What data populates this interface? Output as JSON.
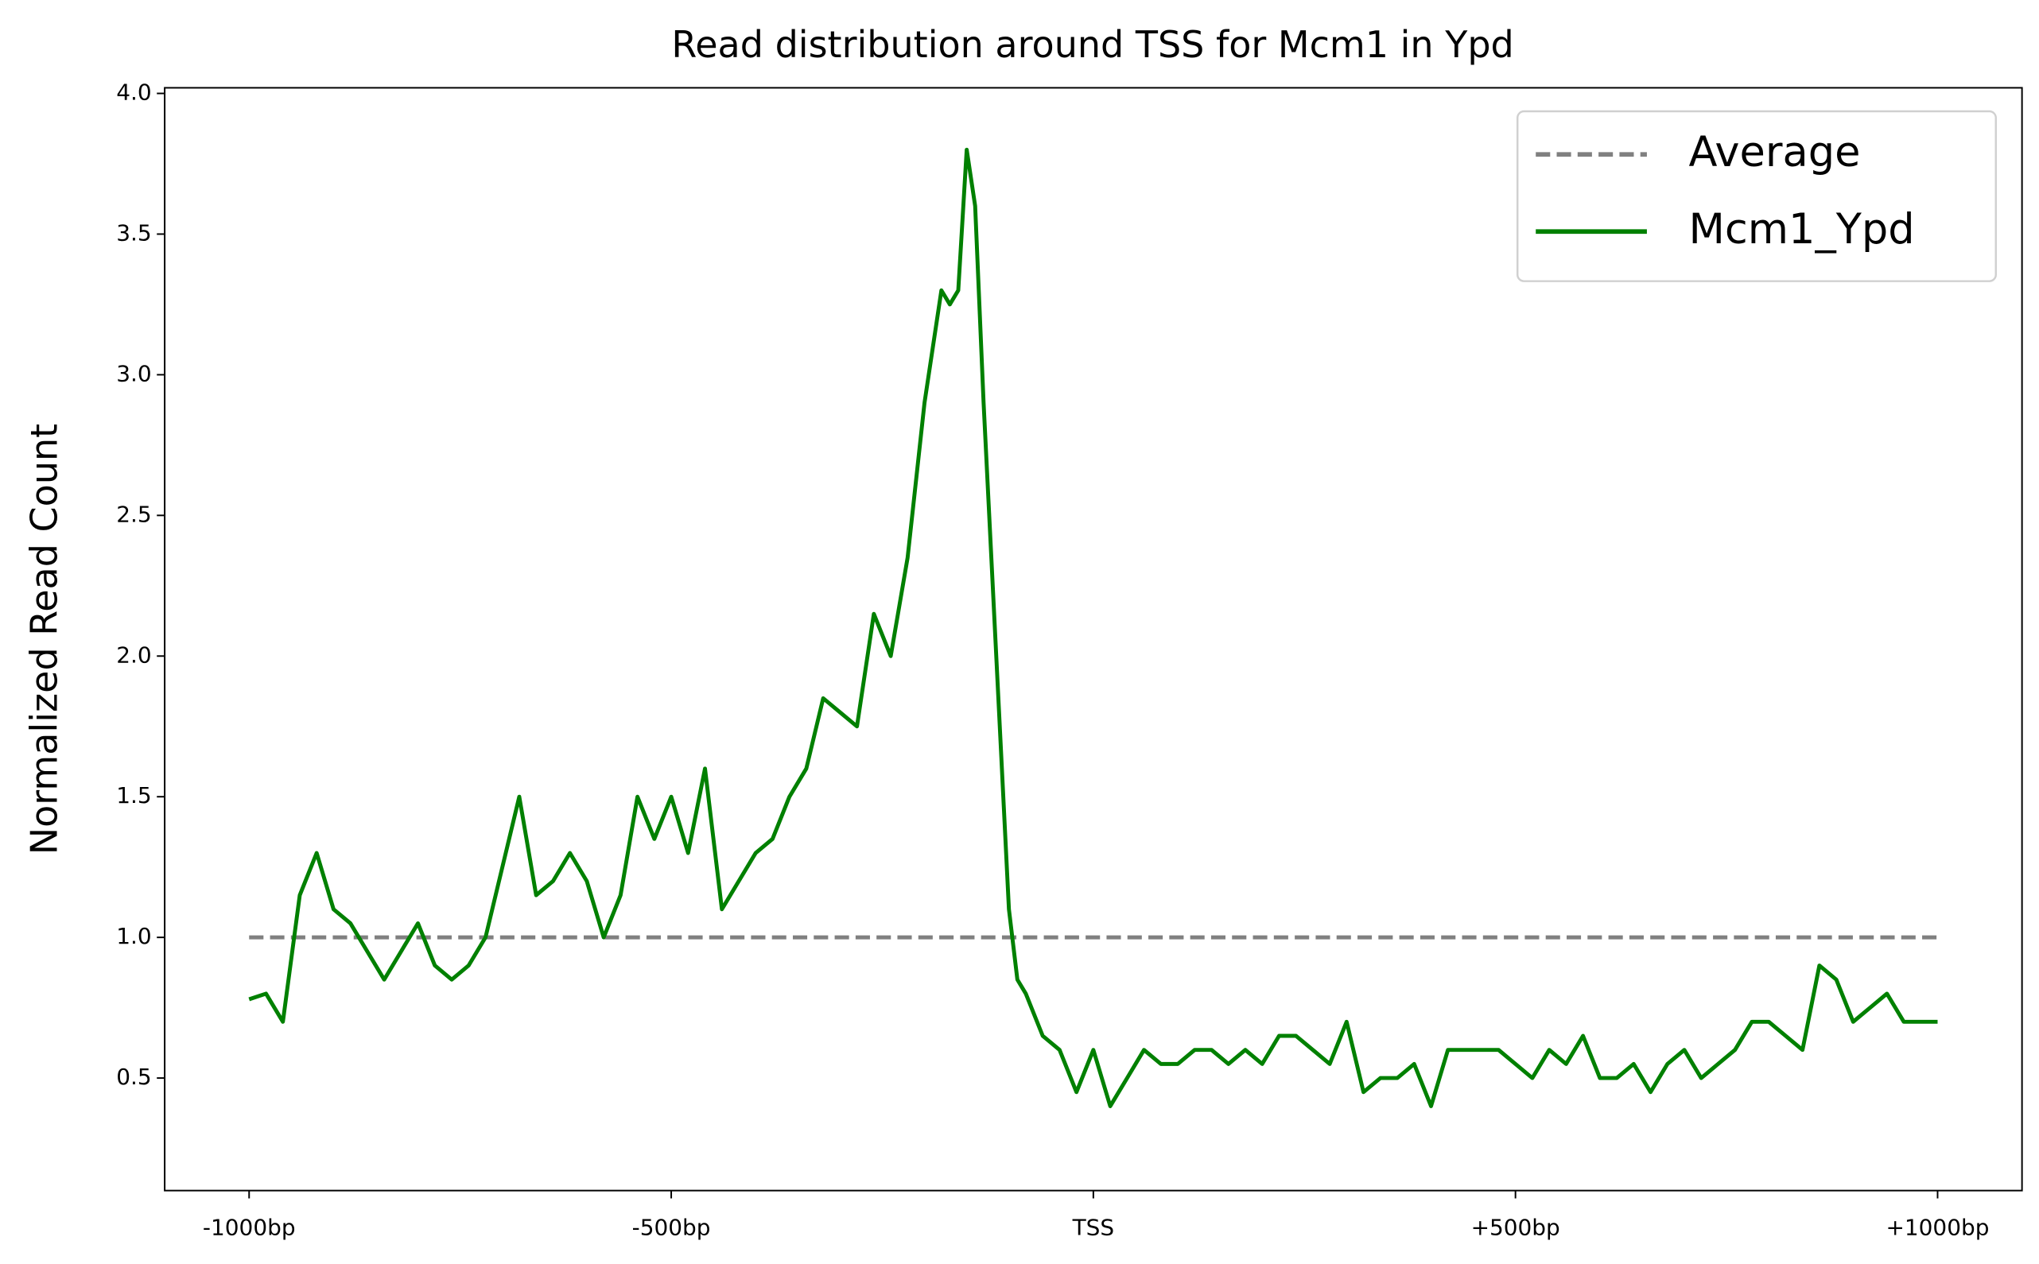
{
  "chart_data": {
    "type": "line",
    "title": "Read distribution around TSS for Mcm1 in Ypd",
    "y_label": "Normalized Read Count",
    "xlim": [
      -1100,
      1100
    ],
    "xticks": [
      {
        "value": -1000,
        "label": "-1000bp"
      },
      {
        "value": -500,
        "label": "-500bp"
      },
      {
        "value": 0,
        "label": "TSS"
      },
      {
        "value": 500,
        "label": "+500bp"
      },
      {
        "value": 1000,
        "label": "+1000bp"
      }
    ],
    "ylim": [
      0.1,
      4.02
    ],
    "yticks": [
      0.5,
      {
        "value": 1,
        "label": "1.0"
      },
      1.5,
      {
        "value": 2,
        "label": "2.0"
      },
      2.5,
      {
        "value": 3,
        "label": "3.0"
      },
      3.5,
      {
        "value": 4,
        "label": "4.0"
      }
    ],
    "legend": "upper right",
    "series": [
      {
        "name": "Average",
        "color": "#808080",
        "dashed": true,
        "x": [
          -1000,
          1000
        ],
        "values": [
          1,
          1
        ]
      },
      {
        "name": "Mcm1_Ypd",
        "color": "#008000",
        "dashed": false,
        "x": [
          -1000,
          -980,
          -960,
          -940,
          -920,
          -900,
          -880,
          -860,
          -840,
          -820,
          -800,
          -780,
          -760,
          -740,
          -720,
          -700,
          -680,
          -660,
          -640,
          -620,
          -600,
          -580,
          -560,
          -540,
          -520,
          -500,
          -480,
          -460,
          -440,
          -420,
          -400,
          -380,
          -360,
          -340,
          -320,
          -300,
          -280,
          -260,
          -240,
          -220,
          -200,
          -180,
          -170,
          -160,
          -150,
          -140,
          -130,
          -120,
          -110,
          -100,
          -90,
          -80,
          -60,
          -40,
          -20,
          0,
          20,
          40,
          60,
          80,
          100,
          120,
          140,
          160,
          180,
          200,
          220,
          240,
          260,
          280,
          300,
          320,
          340,
          360,
          380,
          400,
          420,
          440,
          460,
          480,
          500,
          520,
          540,
          560,
          580,
          600,
          620,
          640,
          660,
          680,
          700,
          720,
          740,
          760,
          780,
          800,
          820,
          840,
          860,
          880,
          900,
          920,
          940,
          960,
          980,
          1000
        ],
        "values": [
          0.78,
          0.8,
          0.7,
          1.15,
          1.3,
          1.1,
          1.05,
          0.95,
          0.85,
          0.95,
          1.05,
          0.9,
          0.85,
          0.9,
          1.0,
          1.25,
          1.5,
          1.15,
          1.2,
          1.3,
          1.2,
          1.0,
          1.15,
          1.5,
          1.35,
          1.5,
          1.3,
          1.6,
          1.1,
          1.2,
          1.3,
          1.35,
          1.5,
          1.6,
          1.85,
          1.8,
          1.75,
          2.15,
          2.0,
          2.35,
          2.9,
          3.3,
          3.25,
          3.3,
          3.8,
          3.6,
          2.9,
          2.3,
          1.7,
          1.1,
          0.85,
          0.8,
          0.65,
          0.6,
          0.45,
          0.6,
          0.4,
          0.5,
          0.6,
          0.55,
          0.55,
          0.6,
          0.6,
          0.55,
          0.6,
          0.55,
          0.65,
          0.65,
          0.6,
          0.55,
          0.7,
          0.45,
          0.5,
          0.5,
          0.55,
          0.4,
          0.6,
          0.6,
          0.6,
          0.6,
          0.55,
          0.5,
          0.6,
          0.55,
          0.65,
          0.5,
          0.5,
          0.55,
          0.45,
          0.55,
          0.6,
          0.5,
          0.55,
          0.6,
          0.7,
          0.7,
          0.65,
          0.6,
          0.9,
          0.85,
          0.7,
          0.75,
          0.8,
          0.7,
          0.7,
          0.7
        ]
      }
    ]
  }
}
